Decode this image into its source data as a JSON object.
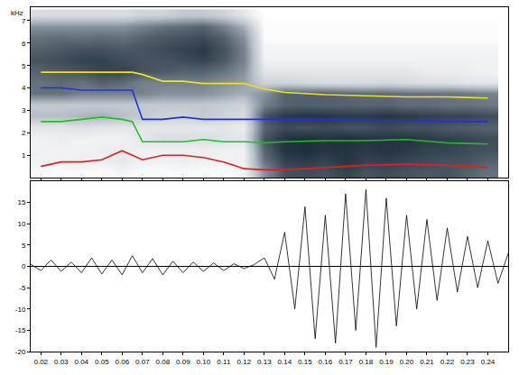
{
  "chart_data": [
    {
      "type": "heatmap",
      "x": [
        0.02,
        0.03,
        0.04,
        0.05,
        0.06,
        0.07,
        0.08,
        0.09,
        0.1,
        0.11,
        0.12,
        0.13,
        0.14,
        0.15,
        0.16,
        0.17,
        0.18,
        0.19,
        0.2,
        0.21,
        0.22,
        0.23,
        0.24
      ],
      "y": [
        0.25,
        0.75,
        1.25,
        1.75,
        2.25,
        2.75,
        3.25,
        3.75,
        4.25,
        4.75,
        5.25,
        5.75,
        6.25,
        6.75,
        7.25
      ],
      "z": [
        [
          0.05,
          0.05,
          0.06,
          0.05,
          0.08,
          0.05,
          0.05,
          0.06,
          0.05,
          0.05,
          0.08,
          0.5,
          0.7,
          0.72,
          0.7,
          0.75,
          0.7,
          0.72,
          0.7,
          0.68,
          0.7,
          0.65,
          0.6
        ],
        [
          0.1,
          0.1,
          0.12,
          0.1,
          0.15,
          0.1,
          0.1,
          0.12,
          0.1,
          0.1,
          0.1,
          0.6,
          0.75,
          0.78,
          0.75,
          0.8,
          0.75,
          0.76,
          0.74,
          0.72,
          0.7,
          0.7,
          0.65
        ],
        [
          0.1,
          0.1,
          0.1,
          0.12,
          0.12,
          0.1,
          0.1,
          0.1,
          0.12,
          0.1,
          0.1,
          0.65,
          0.8,
          0.82,
          0.8,
          0.8,
          0.78,
          0.8,
          0.78,
          0.75,
          0.75,
          0.72,
          0.7
        ],
        [
          0.1,
          0.12,
          0.1,
          0.1,
          0.1,
          0.15,
          0.2,
          0.2,
          0.18,
          0.18,
          0.15,
          0.7,
          0.8,
          0.82,
          0.8,
          0.82,
          0.8,
          0.8,
          0.8,
          0.78,
          0.76,
          0.75,
          0.72
        ],
        [
          0.15,
          0.15,
          0.18,
          0.15,
          0.15,
          0.15,
          0.15,
          0.15,
          0.15,
          0.15,
          0.12,
          0.65,
          0.72,
          0.7,
          0.72,
          0.7,
          0.7,
          0.72,
          0.7,
          0.7,
          0.68,
          0.66,
          0.65
        ],
        [
          0.35,
          0.35,
          0.38,
          0.4,
          0.35,
          0.3,
          0.25,
          0.25,
          0.3,
          0.25,
          0.2,
          0.7,
          0.78,
          0.8,
          0.8,
          0.78,
          0.78,
          0.8,
          0.78,
          0.76,
          0.75,
          0.75,
          0.72
        ],
        [
          0.3,
          0.3,
          0.3,
          0.3,
          0.3,
          0.3,
          0.3,
          0.3,
          0.3,
          0.28,
          0.25,
          0.55,
          0.65,
          0.66,
          0.65,
          0.65,
          0.64,
          0.65,
          0.62,
          0.62,
          0.6,
          0.6,
          0.58
        ],
        [
          0.6,
          0.6,
          0.55,
          0.55,
          0.55,
          0.55,
          0.5,
          0.5,
          0.5,
          0.45,
          0.4,
          0.5,
          0.65,
          0.65,
          0.66,
          0.64,
          0.62,
          0.62,
          0.6,
          0.6,
          0.6,
          0.58,
          0.55
        ],
        [
          0.6,
          0.62,
          0.6,
          0.65,
          0.62,
          0.55,
          0.55,
          0.55,
          0.55,
          0.5,
          0.45,
          0.25,
          0.25,
          0.22,
          0.2,
          0.2,
          0.2,
          0.22,
          0.2,
          0.18,
          0.18,
          0.15,
          0.15
        ],
        [
          0.65,
          0.68,
          0.7,
          0.75,
          0.75,
          0.7,
          0.68,
          0.65,
          0.65,
          0.6,
          0.5,
          0.15,
          0.15,
          0.15,
          0.15,
          0.15,
          0.15,
          0.15,
          0.15,
          0.12,
          0.12,
          0.12,
          0.1
        ],
        [
          0.7,
          0.72,
          0.75,
          0.75,
          0.72,
          0.7,
          0.7,
          0.72,
          0.75,
          0.68,
          0.55,
          0.1,
          0.1,
          0.1,
          0.1,
          0.1,
          0.1,
          0.1,
          0.1,
          0.1,
          0.1,
          0.1,
          0.1
        ],
        [
          0.65,
          0.68,
          0.7,
          0.7,
          0.68,
          0.7,
          0.72,
          0.75,
          0.78,
          0.7,
          0.55,
          0.08,
          0.08,
          0.08,
          0.08,
          0.08,
          0.08,
          0.08,
          0.08,
          0.08,
          0.08,
          0.08,
          0.08
        ],
        [
          0.6,
          0.62,
          0.6,
          0.62,
          0.6,
          0.65,
          0.68,
          0.7,
          0.72,
          0.65,
          0.5,
          0.05,
          0.05,
          0.05,
          0.05,
          0.05,
          0.05,
          0.05,
          0.05,
          0.05,
          0.05,
          0.05,
          0.05
        ],
        [
          0.5,
          0.5,
          0.5,
          0.5,
          0.5,
          0.55,
          0.6,
          0.62,
          0.65,
          0.55,
          0.4,
          0.05,
          0.05,
          0.05,
          0.05,
          0.05,
          0.05,
          0.05,
          0.05,
          0.05,
          0.05,
          0.05,
          0.05
        ],
        [
          0.2,
          0.2,
          0.2,
          0.2,
          0.2,
          0.25,
          0.25,
          0.3,
          0.3,
          0.25,
          0.15,
          0.03,
          0.03,
          0.03,
          0.03,
          0.03,
          0.03,
          0.03,
          0.03,
          0.03,
          0.03,
          0.03,
          0.03
        ]
      ],
      "series_x": [
        0.02,
        0.03,
        0.04,
        0.05,
        0.06,
        0.065,
        0.07,
        0.08,
        0.09,
        0.1,
        0.11,
        0.12,
        0.13,
        0.14,
        0.16,
        0.18,
        0.2,
        0.22,
        0.24
      ],
      "series": [
        {
          "color": "#e02020",
          "line_style": "solid",
          "values": [
            0.5,
            0.7,
            0.7,
            0.8,
            1.2,
            1.0,
            0.8,
            1.0,
            1.0,
            0.9,
            0.7,
            0.4,
            0.35,
            0.35,
            0.45,
            0.55,
            0.6,
            0.55,
            0.45
          ]
        },
        {
          "color": "#20c020",
          "line_style": "solid",
          "values": [
            2.5,
            2.5,
            2.6,
            2.7,
            2.6,
            2.5,
            1.6,
            1.6,
            1.6,
            1.7,
            1.6,
            1.6,
            1.55,
            1.6,
            1.65,
            1.65,
            1.7,
            1.55,
            1.5
          ]
        },
        {
          "color": "#2030e0",
          "line_style": "solid",
          "values": [
            4.0,
            4.0,
            3.9,
            3.9,
            3.9,
            3.9,
            2.6,
            2.6,
            2.7,
            2.6,
            2.6,
            2.6,
            2.6,
            2.6,
            2.6,
            2.55,
            2.55,
            2.5,
            2.5
          ]
        },
        {
          "color": "#f0e020",
          "line_style": "solid",
          "values": [
            4.7,
            4.7,
            4.7,
            4.7,
            4.7,
            4.7,
            4.6,
            4.3,
            4.3,
            4.2,
            4.2,
            4.2,
            3.95,
            3.8,
            3.7,
            3.65,
            3.6,
            3.6,
            3.55
          ]
        }
      ],
      "xlim": [
        0.015,
        0.25
      ],
      "ylim": [
        0,
        7.6
      ],
      "yticks": [
        1,
        2,
        3,
        4,
        5,
        6,
        7
      ],
      "tick_labels": "y",
      "annotations": [
        {
          "text": "kHz"
        }
      ]
    },
    {
      "type": "line",
      "x": [
        0.015,
        0.02,
        0.025,
        0.03,
        0.035,
        0.04,
        0.045,
        0.05,
        0.055,
        0.06,
        0.065,
        0.07,
        0.075,
        0.08,
        0.085,
        0.09,
        0.095,
        0.1,
        0.105,
        0.11,
        0.115,
        0.12,
        0.125,
        0.13,
        0.135,
        0.14,
        0.145,
        0.15,
        0.155,
        0.16,
        0.165,
        0.17,
        0.175,
        0.18,
        0.185,
        0.19,
        0.195,
        0.2,
        0.205,
        0.21,
        0.215,
        0.22,
        0.225,
        0.23,
        0.235,
        0.24,
        0.245,
        0.25
      ],
      "values": [
        0.5,
        -1,
        1.5,
        -1.2,
        1,
        -1.5,
        2,
        -1.8,
        1.5,
        -2,
        2.5,
        -1.5,
        1.8,
        -2,
        1.2,
        -1.5,
        1,
        -1.2,
        0.8,
        -1,
        0.6,
        -0.5,
        0.4,
        2,
        -3,
        8,
        -10,
        14,
        -17,
        12,
        -18,
        17,
        -15,
        18,
        -19,
        16,
        -14,
        12,
        -10,
        11,
        -8,
        9,
        -6,
        7,
        -5,
        6,
        -4,
        3
      ],
      "color": "#000000",
      "xlim": [
        0.015,
        0.25
      ],
      "xticks": [
        0.02,
        0.03,
        0.04,
        0.05,
        0.06,
        0.07,
        0.08,
        0.09,
        {
          "value": 0.1,
          "label": "0.10"
        },
        0.11,
        0.12,
        0.13,
        0.14,
        0.15,
        0.16,
        0.17,
        0.18,
        0.19,
        {
          "value": 0.2,
          "label": "0.20"
        },
        0.21,
        0.22,
        0.23,
        0.24
      ],
      "ylim": [
        -20,
        20
      ],
      "yticks": [
        -20,
        -15,
        -10,
        -5,
        0,
        5,
        10,
        15
      ]
    }
  ]
}
